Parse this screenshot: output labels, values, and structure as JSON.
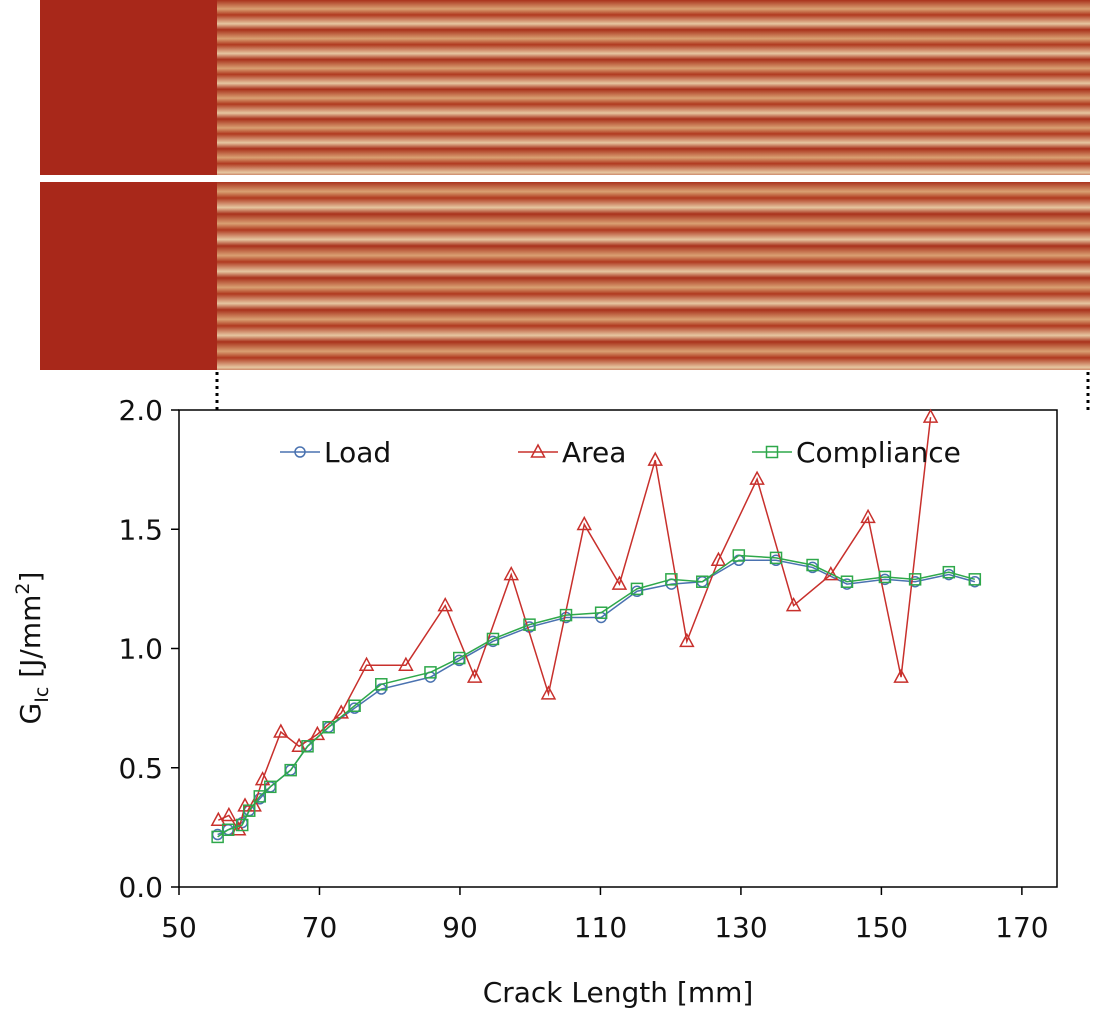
{
  "chart_data": {
    "type": "line",
    "xlabel": "Crack Length [mm]",
    "ylabel": [
      "G",
      "Ic",
      " [J/mm",
      "2",
      "]"
    ],
    "xlim": [
      50,
      175
    ],
    "xticks": [
      50,
      70,
      90,
      110,
      130,
      150,
      170
    ],
    "ylim": [
      0,
      2
    ],
    "yticks": [
      {
        "value": 0,
        "label": "0.0"
      },
      {
        "value": 0.5,
        "label": "0.5"
      },
      {
        "value": 1,
        "label": "1.0"
      },
      {
        "value": 1.5,
        "label": "1.5"
      },
      {
        "value": 2,
        "label": "2.0"
      }
    ],
    "legend": "top",
    "series": [
      {
        "name": "Load",
        "color": "#4a72b0",
        "marker": "circle",
        "x": [
          55.5,
          57,
          59,
          60,
          61.5,
          63,
          65.9,
          68.3,
          71.3,
          75,
          78.8,
          85.8,
          89.9,
          94.7,
          99.9,
          105.1,
          110.1,
          115.2,
          120.1,
          124.5,
          129.7,
          135,
          140.2,
          145.1,
          150.5,
          154.8,
          159.6,
          163.3
        ],
        "values": [
          0.22,
          0.24,
          0.27,
          0.32,
          0.37,
          0.42,
          0.49,
          0.59,
          0.67,
          0.75,
          0.83,
          0.88,
          0.95,
          1.03,
          1.09,
          1.13,
          1.13,
          1.24,
          1.27,
          1.28,
          1.37,
          1.37,
          1.34,
          1.27,
          1.29,
          1.28,
          1.31,
          1.28
        ]
      },
      {
        "name": "Area",
        "color": "#c8302c",
        "marker": "triangle",
        "x": [
          55.6,
          57.1,
          58.5,
          59.4,
          60.7,
          61.9,
          64.5,
          67.1,
          69.7,
          73.1,
          76.7,
          82.3,
          87.9,
          92.1,
          97.3,
          102.6,
          107.7,
          112.7,
          117.8,
          122.3,
          126.8,
          132.3,
          137.5,
          142.8,
          148.1,
          152.8,
          157
        ],
        "values": [
          0.28,
          0.3,
          0.24,
          0.34,
          0.34,
          0.45,
          0.65,
          0.59,
          0.64,
          0.73,
          0.93,
          0.93,
          1.18,
          0.88,
          1.31,
          0.81,
          1.52,
          1.27,
          1.79,
          1.03,
          1.37,
          1.71,
          1.18,
          1.31,
          1.55,
          0.88,
          1.97
        ]
      },
      {
        "name": "Compliance",
        "color": "#2ea84a",
        "marker": "square",
        "x": [
          55.5,
          57,
          59,
          60,
          61.5,
          63,
          65.9,
          68.3,
          71.3,
          75,
          78.8,
          85.8,
          89.9,
          94.7,
          99.9,
          105.1,
          110.1,
          115.2,
          120.1,
          124.5,
          129.7,
          135,
          140.2,
          145.1,
          150.5,
          154.8,
          159.6,
          163.3
        ],
        "values": [
          0.21,
          0.24,
          0.26,
          0.32,
          0.38,
          0.42,
          0.49,
          0.59,
          0.67,
          0.76,
          0.85,
          0.9,
          0.96,
          1.04,
          1.1,
          1.14,
          1.15,
          1.25,
          1.29,
          1.28,
          1.39,
          1.38,
          1.35,
          1.28,
          1.3,
          1.29,
          1.32,
          1.29
        ]
      }
    ]
  }
}
